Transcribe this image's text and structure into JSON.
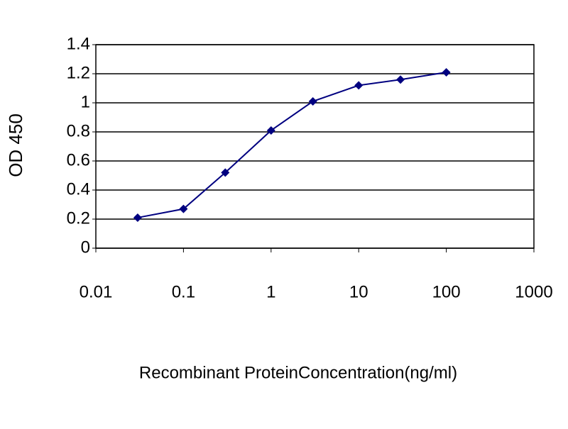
{
  "chart_data": {
    "type": "line",
    "x_label": "Recombinant ProteinConcentration(ng/ml)",
    "y_label": "OD 450",
    "x": [
      0.03,
      0.1,
      0.3,
      1,
      3,
      10,
      30,
      100
    ],
    "series": [
      {
        "color": "#000080",
        "values": [
          0.21,
          0.27,
          0.52,
          0.81,
          1.01,
          1.12,
          1.16,
          1.21
        ]
      }
    ],
    "xscale": "log",
    "xlim": [
      0.01,
      1000
    ],
    "xticks": [
      0.01,
      0.1,
      1,
      10,
      100,
      1000
    ],
    "ylim": [
      0,
      1.4
    ],
    "yticks": [
      0,
      0.2,
      0.4,
      0.6,
      0.8,
      1,
      1.2,
      1.4
    ],
    "grid": true
  }
}
